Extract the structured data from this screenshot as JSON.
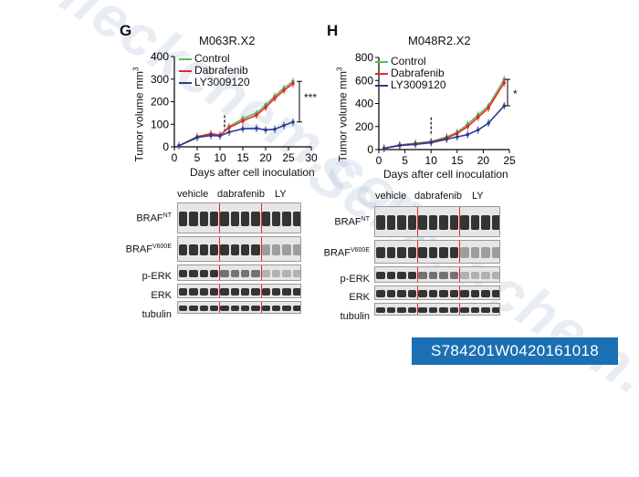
{
  "watermark": {
    "text": "Selleckchem.com"
  },
  "badge": {
    "text": "S784201W0420161018"
  },
  "colors": {
    "control": "#5cb85c",
    "dabrafenib": "#e8262a",
    "ly": "#2b3b8f",
    "badge": "#1c6fb3"
  },
  "panel_g": {
    "letter": "G",
    "title": "M063R.X2",
    "significance": "***",
    "blot_groups": [
      "vehicle",
      "dabrafenib",
      "LY"
    ],
    "blot_rows": [
      {
        "label": "BRAF",
        "sup": "NT"
      },
      {
        "label": "BRAF",
        "sup": "V600E"
      },
      {
        "label": "p-ERK",
        "sup": ""
      },
      {
        "label": "ERK",
        "sup": ""
      },
      {
        "label": "tubulin",
        "sup": ""
      }
    ]
  },
  "panel_h": {
    "letter": "H",
    "title": "M048R2.X2",
    "significance": "*",
    "blot_groups": [
      "vehicle",
      "dabrafenib",
      "LY"
    ],
    "blot_rows": [
      {
        "label": "BRAF",
        "sup": "NT"
      },
      {
        "label": "BRAF",
        "sup": "V600E"
      },
      {
        "label": "p-ERK",
        "sup": ""
      },
      {
        "label": "ERK",
        "sup": ""
      },
      {
        "label": "tubulin",
        "sup": ""
      }
    ]
  },
  "chart_data": [
    {
      "type": "line",
      "title": "M063R.X2",
      "xlabel": "Days after cell inoculation",
      "ylabel": "Tumor volume mm",
      "ylabel_sup": "3",
      "xlim": [
        0,
        30
      ],
      "ylim": [
        0,
        400
      ],
      "xticks": [
        0,
        5,
        10,
        15,
        20,
        25,
        30
      ],
      "yticks": [
        0,
        100,
        200,
        300,
        400
      ],
      "treatment_start_day": 11,
      "legend": [
        "Control",
        "Dabrafenib",
        "LY3009120"
      ],
      "series": [
        {
          "name": "Control",
          "x": [
            1,
            5,
            8,
            10,
            12,
            15,
            18,
            20,
            22,
            24,
            26
          ],
          "y": [
            5,
            40,
            55,
            50,
            90,
            125,
            150,
            185,
            225,
            260,
            290
          ]
        },
        {
          "name": "Dabrafenib",
          "x": [
            1,
            5,
            8,
            10,
            12,
            15,
            18,
            20,
            22,
            24,
            26
          ],
          "y": [
            5,
            45,
            58,
            52,
            85,
            115,
            140,
            175,
            215,
            250,
            280
          ]
        },
        {
          "name": "LY3009120",
          "x": [
            1,
            5,
            8,
            10,
            12,
            15,
            18,
            20,
            22,
            24,
            26
          ],
          "y": [
            5,
            42,
            50,
            48,
            65,
            80,
            82,
            75,
            78,
            95,
            110
          ]
        }
      ]
    },
    {
      "type": "line",
      "title": "M048R2.X2",
      "xlabel": "Days after cell inoculation",
      "ylabel": "Tumor volume mm",
      "ylabel_sup": "3",
      "xlim": [
        0,
        25
      ],
      "ylim": [
        0,
        800
      ],
      "xticks": [
        0,
        5,
        10,
        15,
        20,
        25
      ],
      "yticks": [
        0,
        200,
        400,
        600,
        800
      ],
      "treatment_start_day": 10,
      "legend": [
        "Control",
        "Dabrafenib",
        "LY3009120"
      ],
      "series": [
        {
          "name": "Control",
          "x": [
            1,
            4,
            7,
            10,
            13,
            15,
            17,
            19,
            21,
            24
          ],
          "y": [
            10,
            40,
            55,
            70,
            110,
            150,
            220,
            300,
            380,
            610
          ]
        },
        {
          "name": "Dabrafenib",
          "x": [
            1,
            4,
            7,
            10,
            13,
            15,
            17,
            19,
            21,
            24
          ],
          "y": [
            10,
            38,
            50,
            65,
            100,
            140,
            200,
            280,
            360,
            580
          ]
        },
        {
          "name": "LY3009120",
          "x": [
            1,
            4,
            7,
            10,
            13,
            15,
            17,
            19,
            21,
            24
          ],
          "y": [
            10,
            35,
            45,
            60,
            90,
            110,
            130,
            170,
            230,
            380
          ]
        }
      ]
    }
  ]
}
